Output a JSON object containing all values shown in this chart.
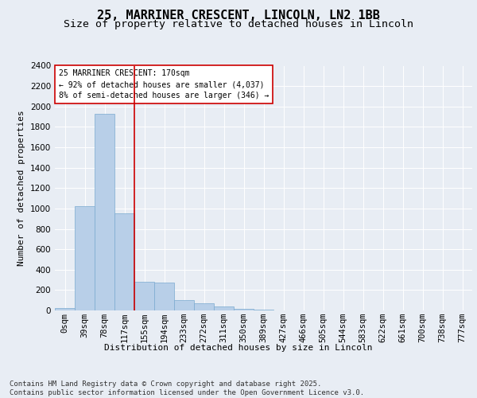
{
  "title_line1": "25, MARRINER CRESCENT, LINCOLN, LN2 1BB",
  "title_line2": "Size of property relative to detached houses in Lincoln",
  "xlabel": "Distribution of detached houses by size in Lincoln",
  "ylabel": "Number of detached properties",
  "categories": [
    "0sqm",
    "39sqm",
    "78sqm",
    "117sqm",
    "155sqm",
    "194sqm",
    "233sqm",
    "272sqm",
    "311sqm",
    "350sqm",
    "389sqm",
    "427sqm",
    "466sqm",
    "505sqm",
    "544sqm",
    "583sqm",
    "622sqm",
    "661sqm",
    "700sqm",
    "738sqm",
    "777sqm"
  ],
  "values": [
    25,
    1025,
    1925,
    950,
    280,
    270,
    105,
    70,
    40,
    18,
    8,
    0,
    0,
    0,
    0,
    0,
    0,
    0,
    0,
    0,
    0
  ],
  "bar_color": "#b8cfe8",
  "bar_edge_color": "#7aaad0",
  "vline_color": "#cc0000",
  "vline_index": 3.5,
  "annotation_text": "25 MARRINER CRESCENT: 170sqm\n← 92% of detached houses are smaller (4,037)\n8% of semi-detached houses are larger (346) →",
  "annotation_box_facecolor": "#ffffff",
  "annotation_box_edgecolor": "#cc0000",
  "ylim": [
    0,
    2400
  ],
  "yticks": [
    0,
    200,
    400,
    600,
    800,
    1000,
    1200,
    1400,
    1600,
    1800,
    2000,
    2200,
    2400
  ],
  "background_color": "#e8edf4",
  "grid_color": "#ffffff",
  "footnote": "Contains HM Land Registry data © Crown copyright and database right 2025.\nContains public sector information licensed under the Open Government Licence v3.0.",
  "title_fontsize": 11,
  "subtitle_fontsize": 9.5,
  "ylabel_fontsize": 8,
  "xlabel_fontsize": 8,
  "tick_fontsize": 7.5,
  "annot_fontsize": 7,
  "footnote_fontsize": 6.5
}
